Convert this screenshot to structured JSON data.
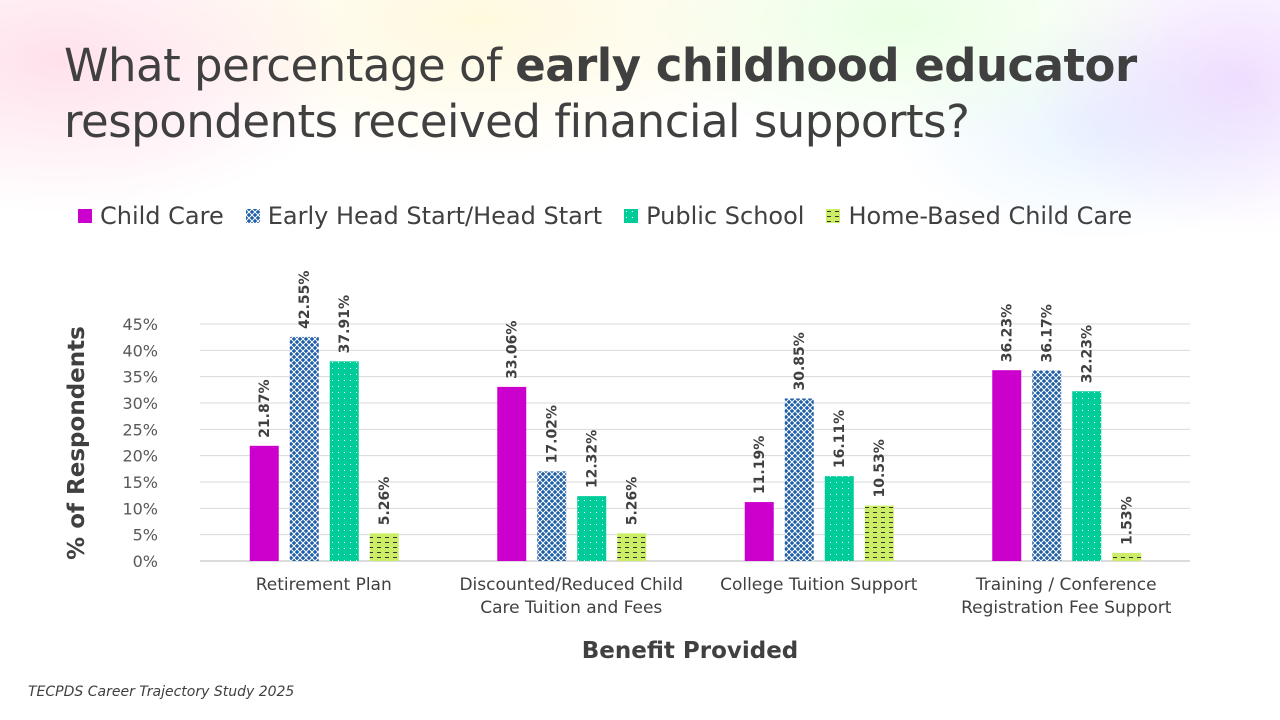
{
  "title": {
    "part1": "What percentage of ",
    "bold": "early childhood educator",
    "part2": "respondents received financial supports?"
  },
  "source": "TECPDS Career Trajectory Study 2025",
  "chart_data": {
    "type": "bar",
    "xlabel": "Benefit Provided",
    "ylabel": "% of Respondents",
    "ylim": [
      0,
      45
    ],
    "yticks": [
      "0%",
      "5%",
      "10%",
      "15%",
      "20%",
      "25%",
      "30%",
      "35%",
      "40%",
      "45%"
    ],
    "grid": true,
    "legend_position": "top",
    "categories": [
      [
        "Retirement Plan"
      ],
      [
        "Discounted/Reduced Child",
        "Care Tuition and Fees"
      ],
      [
        "College Tuition Support"
      ],
      [
        "Training / Conference",
        "Registration Fee Support"
      ]
    ],
    "series": [
      {
        "name": "Child Care",
        "color": "#CC00CC",
        "pattern": "solid",
        "values": [
          21.87,
          33.06,
          11.19,
          36.23
        ],
        "labels": [
          "21.87%",
          "33.06%",
          "11.19%",
          "36.23%"
        ]
      },
      {
        "name": "Early Head Start/Head Start",
        "color": "#1F5FA8",
        "pattern": "crosshatch",
        "values": [
          42.55,
          17.02,
          30.85,
          36.17
        ],
        "labels": [
          "42.55%",
          "17.02%",
          "30.85%",
          "36.17%"
        ]
      },
      {
        "name": "Public School",
        "color": "#00CC99",
        "pattern": "dots",
        "values": [
          37.91,
          12.32,
          16.11,
          32.23
        ],
        "labels": [
          "37.91%",
          "12.32%",
          "16.11%",
          "32.23%"
        ]
      },
      {
        "name": "Home-Based Child Care",
        "color": "#CCEE66",
        "pattern": "dashes",
        "values": [
          5.26,
          5.26,
          10.53,
          1.53
        ],
        "labels": [
          "5.26%",
          "5.26%",
          "10.53%",
          "1.53%"
        ]
      }
    ]
  }
}
